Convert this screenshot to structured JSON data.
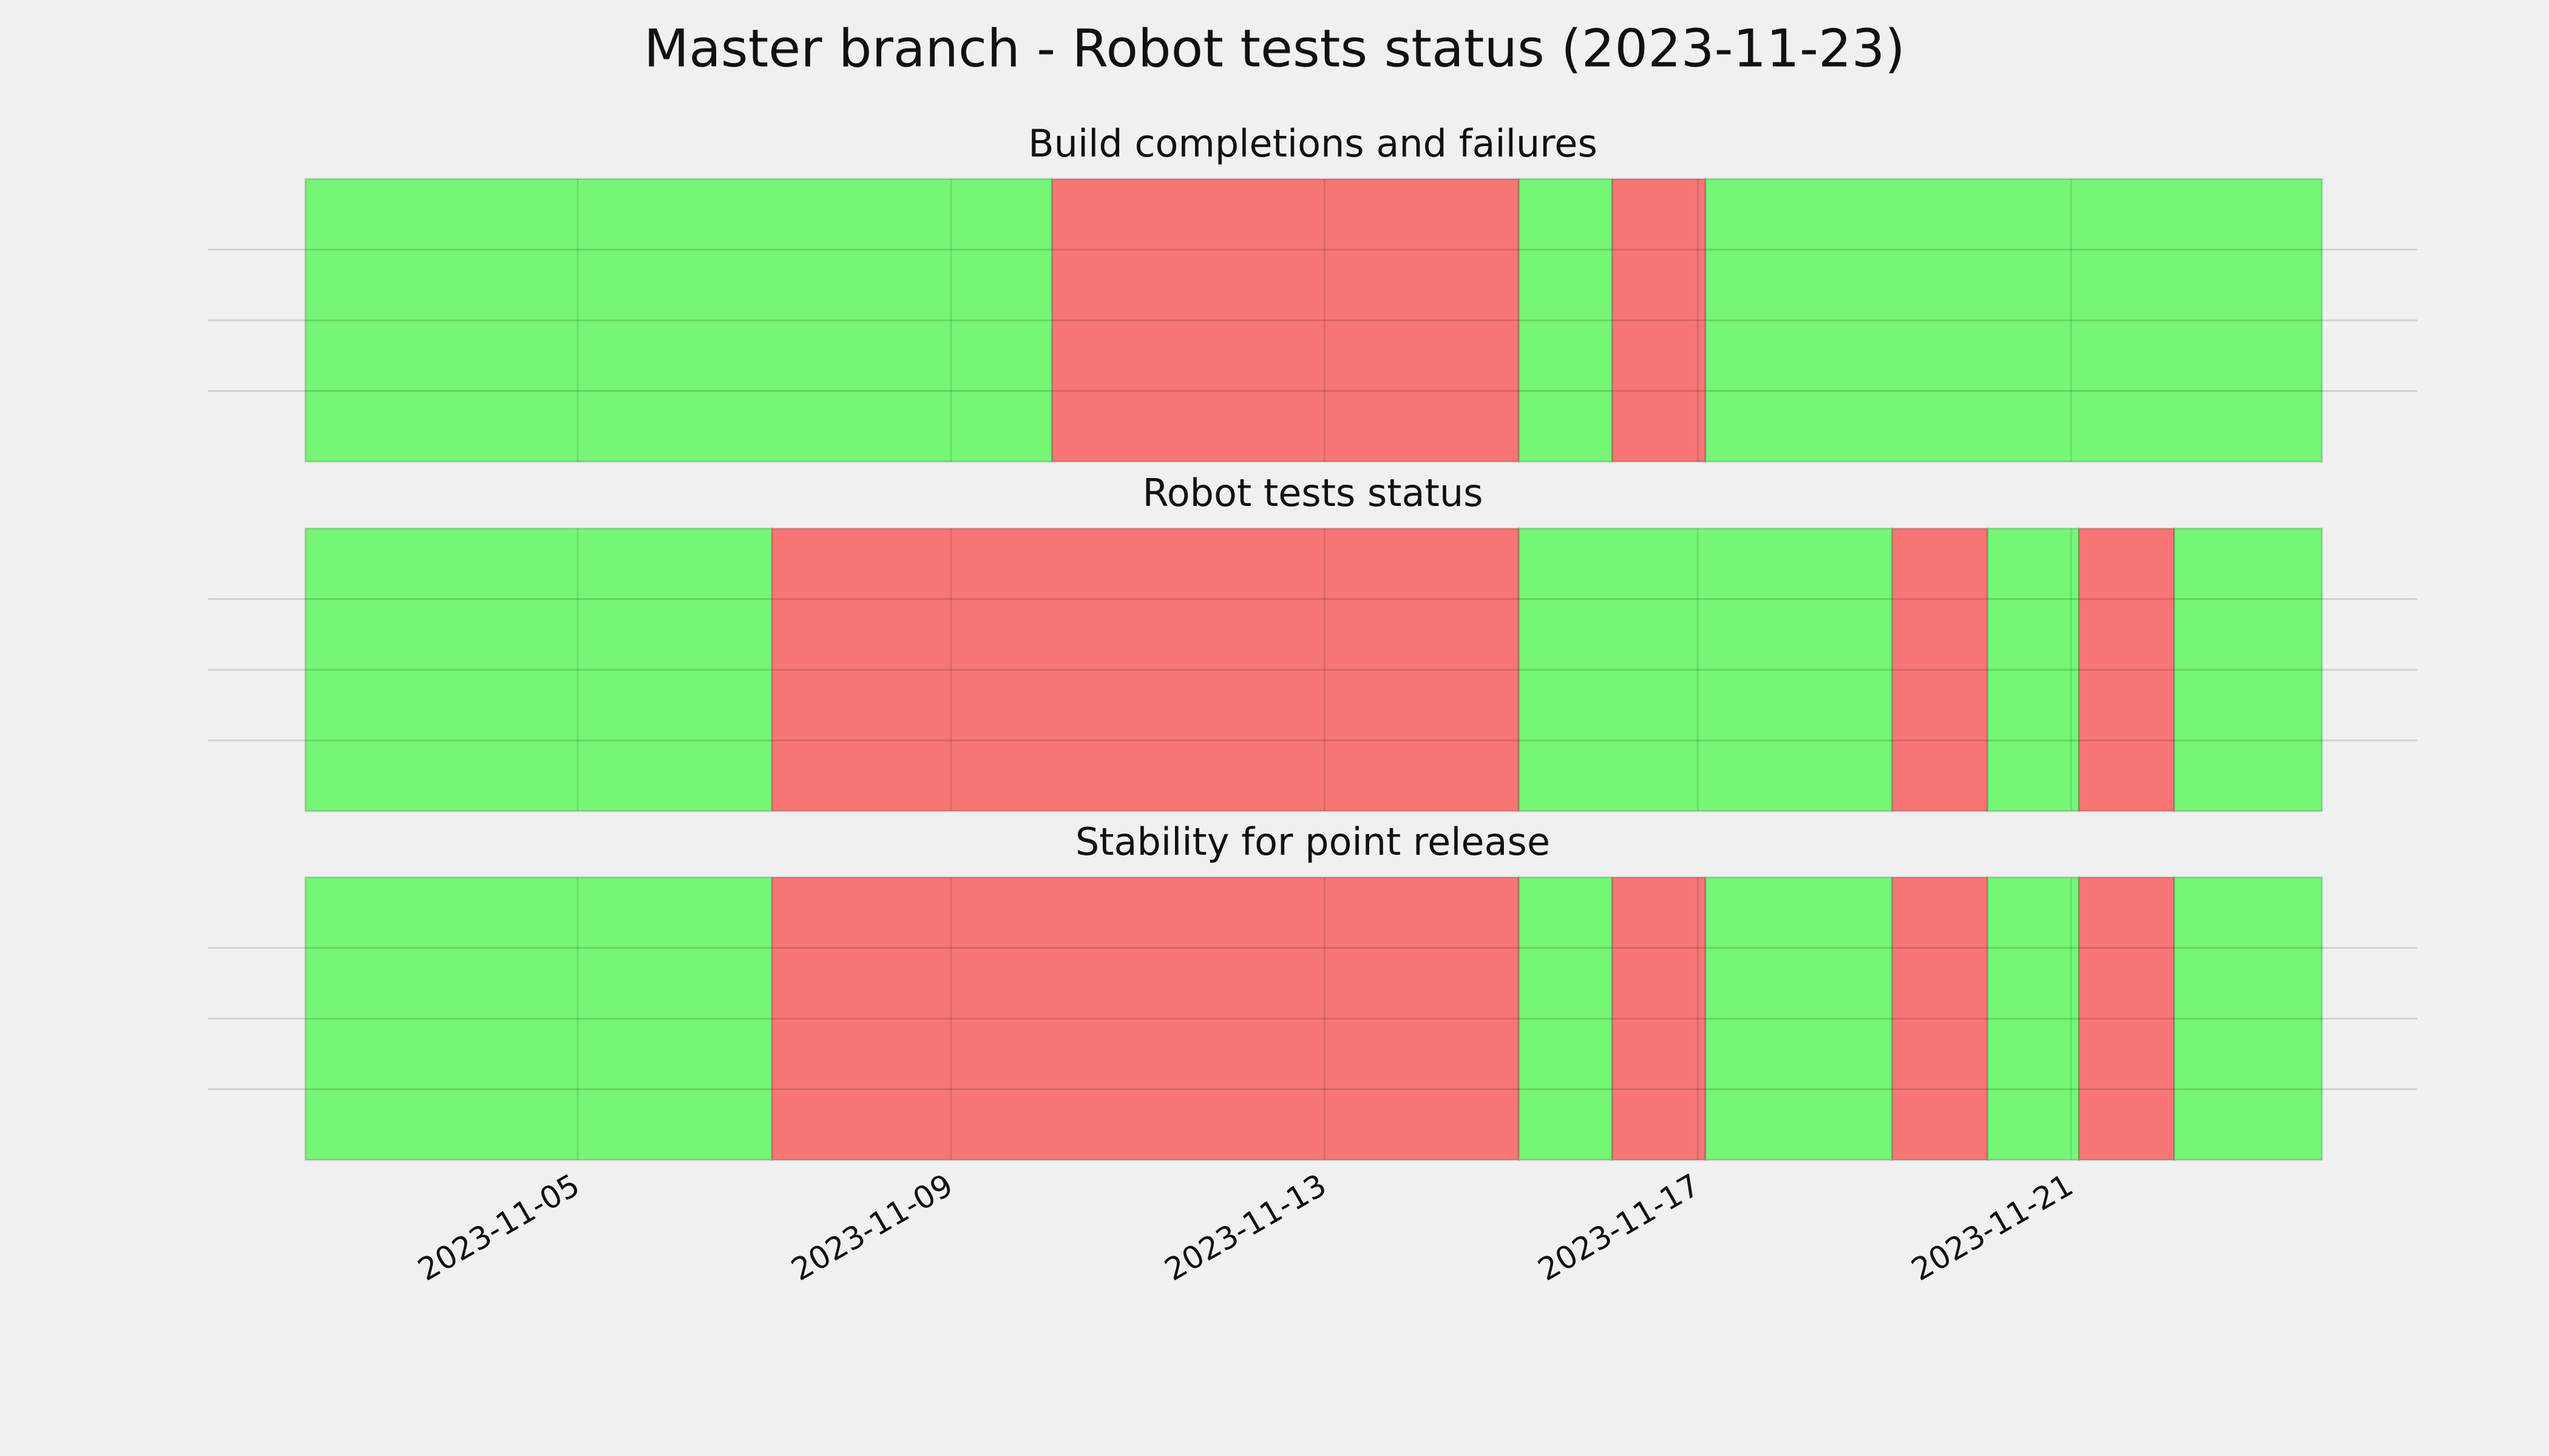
{
  "chart_data": {
    "type": "timeline",
    "title": "Master branch - Robot tests status (2023-11-23)",
    "xlim": [
      "2023-11-01 01:00",
      "2023-11-24 17:00"
    ],
    "xticks": [
      "2023-11-05",
      "2023-11-09",
      "2023-11-13",
      "2023-11-17",
      "2023-11-21"
    ],
    "ylim": [
      0,
      1
    ],
    "yticks": [
      0.25,
      0.5,
      0.75
    ],
    "grid": true,
    "panels": [
      {
        "title": "Build completions and failures",
        "segments": [
          {
            "start": "2023-11-02 02:00",
            "end": "2023-11-10 02:00",
            "color": "#76f576"
          },
          {
            "start": "2023-11-10 02:00",
            "end": "2023-11-15 02:00",
            "color": "#f67676"
          },
          {
            "start": "2023-11-15 02:00",
            "end": "2023-11-16 02:00",
            "color": "#76f576"
          },
          {
            "start": "2023-11-16 02:00",
            "end": "2023-11-17 02:00",
            "color": "#f67676"
          },
          {
            "start": "2023-11-17 02:00",
            "end": "2023-11-23 16:30",
            "color": "#76f576"
          }
        ]
      },
      {
        "title": "Robot tests status",
        "segments": [
          {
            "start": "2023-11-02 02:00",
            "end": "2023-11-07 02:00",
            "color": "#76f576"
          },
          {
            "start": "2023-11-07 02:00",
            "end": "2023-11-15 02:00",
            "color": "#f67676"
          },
          {
            "start": "2023-11-15 02:00",
            "end": "2023-11-19 02:00",
            "color": "#76f576"
          },
          {
            "start": "2023-11-19 02:00",
            "end": "2023-11-20 02:30",
            "color": "#f67676"
          },
          {
            "start": "2023-11-20 02:30",
            "end": "2023-11-21 02:00",
            "color": "#76f576"
          },
          {
            "start": "2023-11-21 02:00",
            "end": "2023-11-22 02:30",
            "color": "#f67676"
          },
          {
            "start": "2023-11-22 02:30",
            "end": "2023-11-23 16:30",
            "color": "#76f576"
          }
        ]
      },
      {
        "title": "Stability for point release",
        "segments": [
          {
            "start": "2023-11-02 02:00",
            "end": "2023-11-07 02:00",
            "color": "#76f576"
          },
          {
            "start": "2023-11-07 02:00",
            "end": "2023-11-15 02:00",
            "color": "#f67676"
          },
          {
            "start": "2023-11-15 02:00",
            "end": "2023-11-16 02:00",
            "color": "#76f576"
          },
          {
            "start": "2023-11-16 02:00",
            "end": "2023-11-17 02:00",
            "color": "#f67676"
          },
          {
            "start": "2023-11-17 02:00",
            "end": "2023-11-19 02:00",
            "color": "#76f576"
          },
          {
            "start": "2023-11-19 02:00",
            "end": "2023-11-20 02:30",
            "color": "#f67676"
          },
          {
            "start": "2023-11-20 02:30",
            "end": "2023-11-21 02:00",
            "color": "#76f576"
          },
          {
            "start": "2023-11-21 02:00",
            "end": "2023-11-22 02:30",
            "color": "#f67676"
          },
          {
            "start": "2023-11-22 02:30",
            "end": "2023-11-23 16:30",
            "color": "#76f576"
          }
        ]
      }
    ]
  }
}
